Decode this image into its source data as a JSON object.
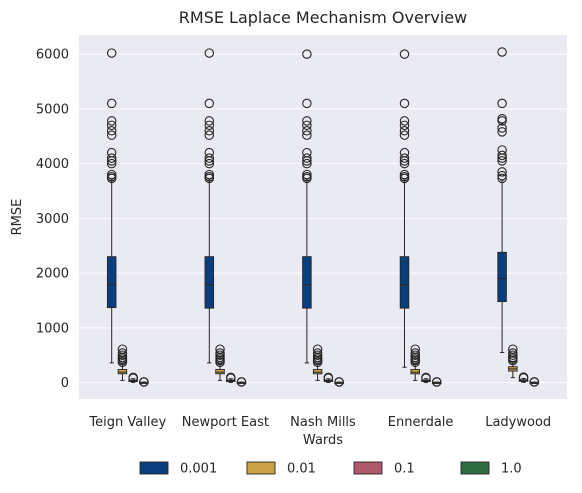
{
  "chart_data": {
    "type": "box",
    "title": "RMSE Laplace Mechanism Overview",
    "xlabel": "Wards",
    "ylabel": "RMSE",
    "ylim": [
      -300,
      6350
    ],
    "yticks": [
      0,
      1000,
      2000,
      3000,
      4000,
      5000,
      6000
    ],
    "grid": true,
    "legend_position": "bottom-center",
    "categories": [
      "Teign Valley",
      "Newport East",
      "Nash Mills",
      "Ennerdale",
      "Ladywood"
    ],
    "series": [
      {
        "name": "0.001",
        "color": "#0a3f7f",
        "boxes": [
          {
            "whislo": 360,
            "q1": 1370,
            "med": 1790,
            "q3": 2300,
            "whishi": 3700,
            "fliers": [
              3730,
              3760,
              3800,
              4000,
              4050,
              4100,
              4200,
              4520,
              4600,
              4700,
              4780,
              5100,
              6020
            ]
          },
          {
            "whislo": 360,
            "q1": 1360,
            "med": 1790,
            "q3": 2300,
            "whishi": 3700,
            "fliers": [
              3730,
              3760,
              3800,
              4000,
              4050,
              4100,
              4200,
              4520,
              4600,
              4700,
              4780,
              5100,
              6020
            ]
          },
          {
            "whislo": 360,
            "q1": 1360,
            "med": 1790,
            "q3": 2300,
            "whishi": 3700,
            "fliers": [
              3730,
              3760,
              3800,
              4000,
              4050,
              4100,
              4200,
              4520,
              4600,
              4700,
              4780,
              5100,
              6000
            ]
          },
          {
            "whislo": 280,
            "q1": 1360,
            "med": 1790,
            "q3": 2300,
            "whishi": 3700,
            "fliers": [
              3730,
              3760,
              3800,
              4000,
              4050,
              4100,
              4200,
              4520,
              4600,
              4700,
              4780,
              5100,
              6000
            ]
          },
          {
            "whislo": 550,
            "q1": 1480,
            "med": 1900,
            "q3": 2380,
            "whishi": 3700,
            "fliers": [
              3730,
              3780,
              3850,
              4050,
              4100,
              4150,
              4250,
              4580,
              4650,
              4780,
              4820,
              5100,
              6040
            ]
          }
        ]
      },
      {
        "name": "0.01",
        "color": "#c9a24a",
        "boxes": [
          {
            "whislo": 40,
            "q1": 160,
            "med": 190,
            "q3": 240,
            "whishi": 350,
            "fliers": [
              370,
              400,
              430,
              460,
              500,
              540,
              610
            ]
          },
          {
            "whislo": 40,
            "q1": 160,
            "med": 190,
            "q3": 240,
            "whishi": 350,
            "fliers": [
              370,
              400,
              430,
              460,
              500,
              540,
              610
            ]
          },
          {
            "whislo": 40,
            "q1": 160,
            "med": 190,
            "q3": 240,
            "whishi": 350,
            "fliers": [
              370,
              400,
              430,
              460,
              500,
              540,
              610
            ]
          },
          {
            "whislo": 40,
            "q1": 160,
            "med": 190,
            "q3": 240,
            "whishi": 350,
            "fliers": [
              370,
              400,
              430,
              460,
              500,
              540,
              610
            ]
          },
          {
            "whislo": 90,
            "q1": 210,
            "med": 250,
            "q3": 290,
            "whishi": 380,
            "fliers": [
              400,
              430,
              460,
              500,
              540,
              610
            ]
          }
        ]
      },
      {
        "name": "0.1",
        "color": "#b0596c",
        "boxes": [
          {
            "whislo": 5,
            "q1": 20,
            "med": 30,
            "q3": 45,
            "whishi": 70,
            "fliers": [
              80,
              95
            ]
          },
          {
            "whislo": 5,
            "q1": 20,
            "med": 30,
            "q3": 45,
            "whishi": 70,
            "fliers": [
              80,
              95
            ]
          },
          {
            "whislo": 5,
            "q1": 20,
            "med": 30,
            "q3": 45,
            "whishi": 70,
            "fliers": [
              80,
              95
            ]
          },
          {
            "whislo": 5,
            "q1": 20,
            "med": 30,
            "q3": 45,
            "whishi": 70,
            "fliers": [
              80,
              95
            ]
          },
          {
            "whislo": 5,
            "q1": 25,
            "med": 35,
            "q3": 50,
            "whishi": 75,
            "fliers": [
              85,
              100
            ]
          }
        ]
      },
      {
        "name": "1.0",
        "color": "#2e6b3e",
        "boxes": [
          {
            "whislo": 0,
            "q1": 2,
            "med": 3,
            "q3": 5,
            "whishi": 8,
            "fliers": [
              10,
              14
            ]
          },
          {
            "whislo": 0,
            "q1": 2,
            "med": 3,
            "q3": 5,
            "whishi": 8,
            "fliers": [
              10,
              14
            ]
          },
          {
            "whislo": 0,
            "q1": 2,
            "med": 3,
            "q3": 5,
            "whishi": 8,
            "fliers": [
              10,
              14
            ]
          },
          {
            "whislo": 0,
            "q1": 2,
            "med": 3,
            "q3": 5,
            "whishi": 8,
            "fliers": [
              10,
              14
            ]
          },
          {
            "whislo": 0,
            "q1": 2,
            "med": 3,
            "q3": 5,
            "whishi": 8,
            "fliers": [
              10,
              14
            ]
          }
        ]
      }
    ]
  }
}
